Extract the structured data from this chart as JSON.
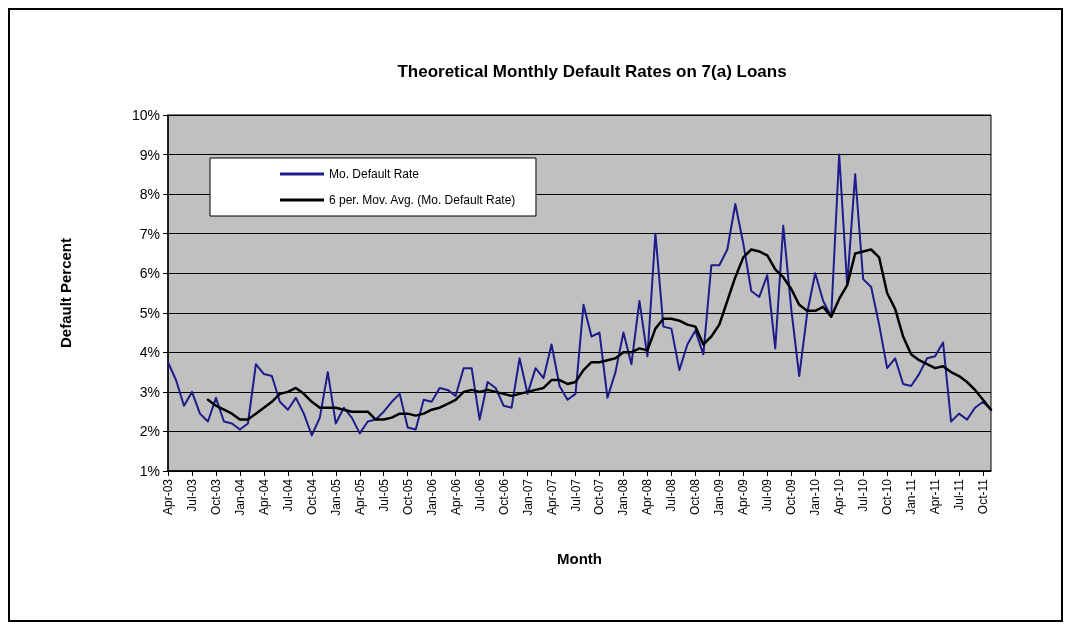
{
  "chart_data": {
    "type": "line",
    "title": "Theoretical Monthly Default Rates on 7(a) Loans",
    "xlabel": "Month",
    "ylabel": "Default Percent",
    "categories": [
      "Apr-03",
      null,
      null,
      "Jul-03",
      null,
      null,
      "Oct-03",
      null,
      null,
      "Jan-04",
      null,
      null,
      "Apr-04",
      null,
      null,
      "Jul-04",
      null,
      null,
      "Oct-04",
      null,
      null,
      "Jan-05",
      null,
      null,
      "Apr-05",
      null,
      null,
      "Jul-05",
      null,
      null,
      "Oct-05",
      null,
      null,
      "Jan-06",
      null,
      null,
      "Apr-06",
      null,
      null,
      "Jul-06",
      null,
      null,
      "Oct-06",
      null,
      null,
      "Jan-07",
      null,
      null,
      "Apr-07",
      null,
      null,
      "Jul-07",
      null,
      null,
      "Oct-07",
      null,
      null,
      "Jan-08",
      null,
      null,
      "Apr-08",
      null,
      null,
      "Jul-08",
      null,
      null,
      "Oct-08",
      null,
      null,
      "Jan-09",
      null,
      null,
      "Apr-09",
      null,
      null,
      "Jul-09",
      null,
      null,
      "Oct-09",
      null,
      null,
      "Jan-10",
      null,
      null,
      "Apr-10",
      null,
      null,
      "Jul-10",
      null,
      null,
      "Oct-10",
      null,
      null,
      "Jan-11",
      null,
      null,
      "Apr-11",
      null,
      null,
      "Jul-11",
      null,
      null,
      "Oct-11",
      null
    ],
    "series": [
      {
        "name": "Mo. Default Rate",
        "color": "#1c1c8a",
        "values": [
          3.75,
          3.3,
          2.65,
          3.0,
          2.45,
          2.25,
          2.85,
          2.25,
          2.2,
          2.05,
          2.2,
          3.7,
          3.45,
          3.4,
          2.75,
          2.55,
          2.85,
          2.45,
          1.9,
          2.35,
          3.5,
          2.2,
          2.6,
          2.35,
          1.95,
          2.25,
          2.3,
          2.5,
          2.75,
          2.95,
          2.1,
          2.05,
          2.8,
          2.75,
          3.1,
          3.05,
          2.9,
          3.6,
          3.6,
          2.3,
          3.25,
          3.1,
          2.65,
          2.6,
          3.85,
          2.95,
          3.6,
          3.35,
          4.2,
          3.15,
          2.8,
          2.95,
          5.2,
          4.4,
          4.5,
          2.85,
          3.5,
          4.5,
          3.7,
          5.3,
          3.9,
          7.0,
          4.65,
          4.6,
          3.55,
          4.2,
          4.55,
          3.95,
          6.2,
          6.2,
          6.6,
          7.75,
          6.75,
          5.55,
          5.4,
          5.95,
          4.1,
          7.2,
          5.1,
          3.4,
          5.0,
          6.0,
          5.3,
          4.9,
          9.0,
          5.7,
          8.5,
          5.85,
          5.65,
          4.7,
          3.6,
          3.85,
          3.2,
          3.15,
          3.45,
          3.85,
          3.9,
          4.25,
          2.25,
          2.45,
          2.3,
          2.6,
          2.75,
          2.55
        ]
      },
      {
        "name": "6 per. Mov. Avg. (Mo. Default Rate)",
        "color": "#000000",
        "values": [
          null,
          null,
          null,
          null,
          null,
          2.8,
          2.65,
          2.55,
          2.45,
          2.3,
          2.3,
          2.45,
          2.6,
          2.75,
          2.95,
          3.0,
          3.1,
          2.95,
          2.75,
          2.6,
          2.6,
          2.6,
          2.55,
          2.5,
          2.5,
          2.5,
          2.3,
          2.3,
          2.35,
          2.45,
          2.45,
          2.4,
          2.45,
          2.55,
          2.6,
          2.7,
          2.8,
          3.0,
          3.05,
          3.0,
          3.05,
          3.0,
          2.95,
          2.9,
          2.95,
          3.0,
          3.05,
          3.1,
          3.3,
          3.3,
          3.2,
          3.25,
          3.55,
          3.75,
          3.75,
          3.8,
          3.85,
          4.0,
          4.0,
          4.1,
          4.05,
          4.6,
          4.85,
          4.85,
          4.8,
          4.7,
          4.65,
          4.2,
          4.4,
          4.7,
          5.3,
          5.9,
          6.4,
          6.6,
          6.55,
          6.45,
          6.1,
          5.9,
          5.6,
          5.2,
          5.05,
          5.05,
          5.15,
          4.9,
          5.35,
          5.7,
          6.5,
          6.55,
          6.6,
          6.4,
          5.5,
          5.1,
          4.4,
          3.95,
          3.8,
          3.7,
          3.6,
          3.65,
          3.5,
          3.4,
          3.25,
          3.05,
          2.8,
          2.55
        ]
      }
    ],
    "ylim": [
      1,
      10
    ],
    "yticks": [
      {
        "value": 1,
        "label": "1%"
      },
      {
        "value": 2,
        "label": "2%"
      },
      {
        "value": 3,
        "label": "3%"
      },
      {
        "value": 4,
        "label": "4%"
      },
      {
        "value": 5,
        "label": "5%"
      },
      {
        "value": 6,
        "label": "6%"
      },
      {
        "value": 7,
        "label": "7%"
      },
      {
        "value": 8,
        "label": "8%"
      },
      {
        "value": 9,
        "label": "9%"
      },
      {
        "value": 10,
        "label": "10%"
      }
    ],
    "grid": "y",
    "legend": "top left",
    "marker": "none",
    "line_style": "solid"
  }
}
